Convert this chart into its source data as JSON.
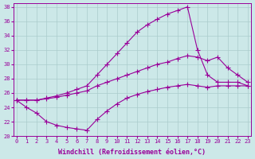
{
  "xlabel": "Windchill (Refroidissement éolien,°C)",
  "xlim_min": -0.3,
  "xlim_max": 23.3,
  "ylim_min": 20,
  "ylim_max": 38.5,
  "xticks": [
    0,
    1,
    2,
    3,
    4,
    5,
    6,
    7,
    8,
    9,
    10,
    11,
    12,
    13,
    14,
    15,
    16,
    17,
    18,
    19,
    20,
    21,
    22,
    23
  ],
  "yticks": [
    20,
    22,
    24,
    26,
    28,
    30,
    32,
    34,
    36,
    38
  ],
  "line_color": "#990099",
  "bg_color": "#cce8e8",
  "grid_color": "#aacccc",
  "curve_top_x": [
    0,
    1,
    2,
    3,
    4,
    5,
    6,
    7,
    8,
    9,
    10,
    11,
    12,
    13,
    14,
    15,
    16,
    17,
    18,
    19,
    20,
    21,
    22,
    23
  ],
  "curve_top_y": [
    25.0,
    25.0,
    25.0,
    25.3,
    25.6,
    26.0,
    26.5,
    27.0,
    28.5,
    30.0,
    31.5,
    33.0,
    34.5,
    35.5,
    36.3,
    37.0,
    37.5,
    38.0,
    32.0,
    28.5,
    27.5,
    27.5,
    27.5,
    27.0
  ],
  "curve_mid_x": [
    0,
    1,
    2,
    3,
    4,
    5,
    6,
    7,
    8,
    9,
    10,
    11,
    12,
    13,
    14,
    15,
    16,
    17,
    18,
    19,
    20,
    21,
    22,
    23
  ],
  "curve_mid_y": [
    25.0,
    25.0,
    25.0,
    25.2,
    25.4,
    25.7,
    26.0,
    26.3,
    27.0,
    27.5,
    28.0,
    28.5,
    29.0,
    29.5,
    30.0,
    30.3,
    30.8,
    31.2,
    31.0,
    30.5,
    31.0,
    29.5,
    28.5,
    27.5
  ],
  "curve_bot_x": [
    0,
    1,
    2,
    3,
    4,
    5,
    6,
    7,
    8,
    9,
    10,
    11,
    12,
    13,
    14,
    15,
    16,
    17,
    18,
    19,
    20,
    21,
    22,
    23
  ],
  "curve_bot_y": [
    25.0,
    24.0,
    23.2,
    22.0,
    21.5,
    21.2,
    21.0,
    20.8,
    22.3,
    23.5,
    24.5,
    25.3,
    25.8,
    26.2,
    26.5,
    26.8,
    27.0,
    27.2,
    27.0,
    26.8,
    27.0,
    27.0,
    27.0,
    27.0
  ],
  "marker": "+",
  "markersize": 4.0,
  "linewidth": 0.8,
  "tick_fontsize": 5.0,
  "label_fontsize": 6.0
}
